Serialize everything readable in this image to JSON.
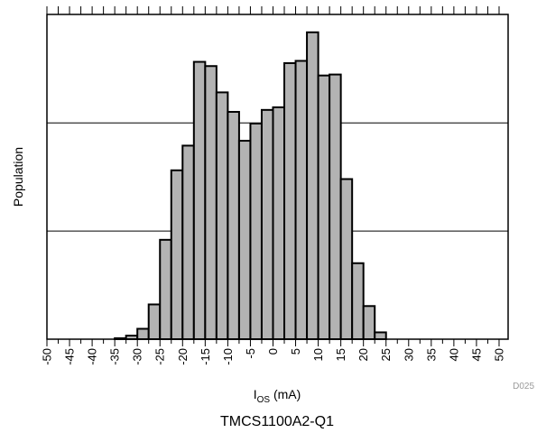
{
  "chart_data": {
    "type": "bar",
    "title": "",
    "xlabel_main": "I",
    "xlabel_sub": "OS",
    "xlabel_unit": " (mA)",
    "ylabel": "Population",
    "caption": "TMCS1100A2-Q1",
    "figure_id": "D025",
    "xlim": [
      -50,
      52
    ],
    "ylim": [
      0,
      100
    ],
    "ytick_values": [
      33.3,
      66.6
    ],
    "y_grid": true,
    "bin_width": 2.5,
    "x_ticks": [
      -50,
      -45,
      -40,
      -35,
      -30,
      -25,
      -20,
      -15,
      -10,
      -5,
      0,
      5,
      10,
      15,
      20,
      25,
      30,
      35,
      40,
      45,
      50
    ],
    "x_tick_labels": [
      "-50",
      "-45",
      "-40",
      "-35",
      "-30",
      "-25",
      "-20",
      "-15",
      "-10",
      "-5",
      "0",
      "5",
      "10",
      "15",
      "20",
      "25",
      "30",
      "35",
      "40",
      "45",
      "50"
    ],
    "bins_start": [
      -35,
      -32.5,
      -30,
      -27.5,
      -25,
      -22.5,
      -20,
      -17.5,
      -15,
      -12.5,
      -10,
      -7.5,
      -5,
      -2.5,
      0,
      2.5,
      5,
      7.5,
      10,
      12.5,
      15,
      17.5,
      20,
      22.5
    ],
    "values": [
      0.3,
      1.1,
      3.2,
      10.7,
      30.6,
      52.0,
      59.6,
      85.4,
      84.1,
      76.0,
      70.0,
      61.1,
      66.4,
      70.6,
      71.4,
      85.0,
      85.7,
      94.5,
      81.2,
      81.5,
      49.3,
      23.4,
      10.2,
      2.1
    ]
  },
  "colors": {
    "bar_fill": "#b3b3b3",
    "bar_stroke": "#000000",
    "grid": "#000000",
    "axis": "#000000"
  }
}
